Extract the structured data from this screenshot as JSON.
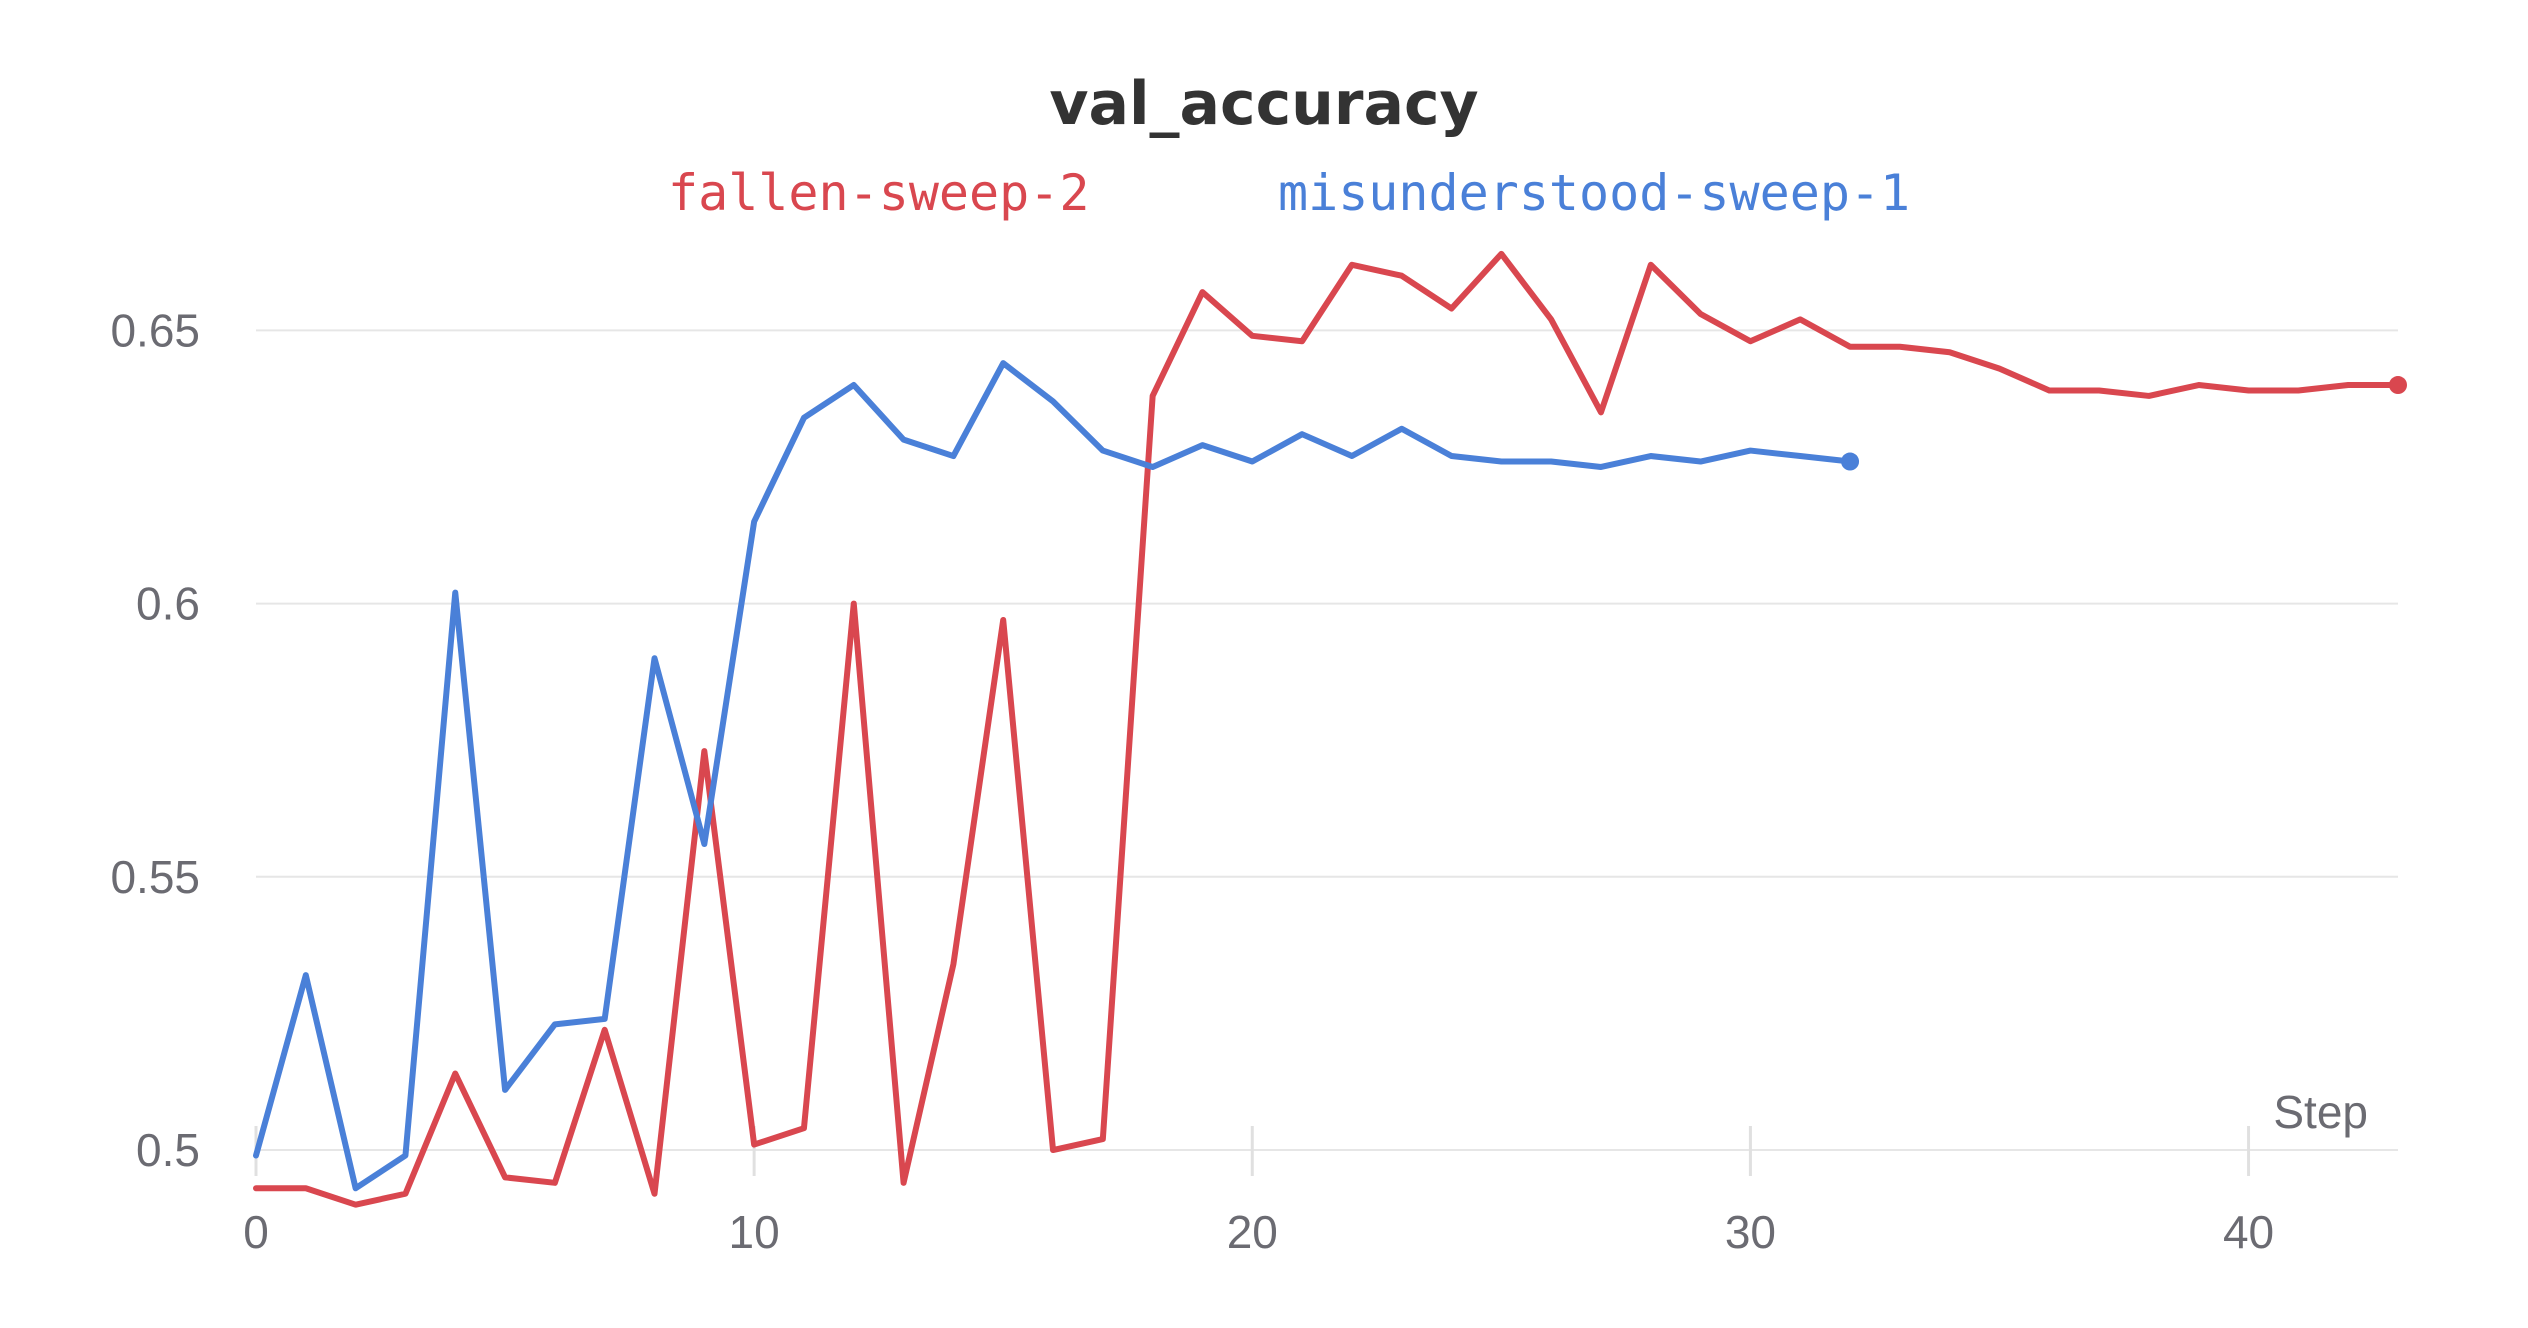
{
  "chart_data": {
    "type": "line",
    "title": "val_accuracy",
    "xlabel": "Step",
    "ylabel": "",
    "xlim": [
      0,
      43
    ],
    "ylim": [
      0.485,
      0.668
    ],
    "xticks": [
      0,
      10,
      20,
      30,
      40
    ],
    "yticks": [
      0.5,
      0.55,
      0.6,
      0.65
    ],
    "ytick_labels": [
      "0.5",
      "0.55",
      "0.6",
      "0.65"
    ],
    "legend_position": "top-center",
    "grid": true,
    "series": [
      {
        "name": "fallen-sweep-2",
        "color": "#d9474f",
        "x": [
          0,
          1,
          2,
          3,
          4,
          5,
          6,
          7,
          8,
          9,
          10,
          11,
          12,
          13,
          14,
          15,
          16,
          17,
          18,
          19,
          20,
          21,
          22,
          23,
          24,
          25,
          26,
          27,
          28,
          29,
          30,
          31,
          32,
          33,
          34,
          35,
          36,
          37,
          38,
          39,
          40,
          41,
          42,
          43
        ],
        "values": [
          0.493,
          0.493,
          0.49,
          0.492,
          0.514,
          0.495,
          0.494,
          0.522,
          0.492,
          0.573,
          0.501,
          0.504,
          0.6,
          0.494,
          0.534,
          0.597,
          0.5,
          0.502,
          0.638,
          0.657,
          0.649,
          0.648,
          0.662,
          0.66,
          0.654,
          0.664,
          0.652,
          0.635,
          0.662,
          0.653,
          0.648,
          0.652,
          0.647,
          0.647,
          0.646,
          0.643,
          0.639,
          0.639,
          0.638,
          0.64,
          0.639,
          0.639,
          0.64,
          0.64
        ]
      },
      {
        "name": "misunderstood-sweep-1",
        "color": "#4a80d8",
        "x": [
          0,
          1,
          2,
          3,
          4,
          5,
          6,
          7,
          8,
          9,
          10,
          11,
          12,
          13,
          14,
          15,
          16,
          17,
          18,
          19,
          20,
          21,
          22,
          23,
          24,
          25,
          26,
          27,
          28,
          29,
          30,
          31,
          32
        ],
        "values": [
          0.499,
          0.532,
          0.493,
          0.499,
          0.602,
          0.511,
          0.523,
          0.524,
          0.59,
          0.556,
          0.615,
          0.634,
          0.64,
          0.63,
          0.627,
          0.644,
          0.637,
          0.628,
          0.625,
          0.629,
          0.626,
          0.631,
          0.627,
          0.632,
          0.627,
          0.626,
          0.626,
          0.625,
          0.627,
          0.626,
          0.628,
          0.627,
          0.626
        ]
      }
    ]
  }
}
